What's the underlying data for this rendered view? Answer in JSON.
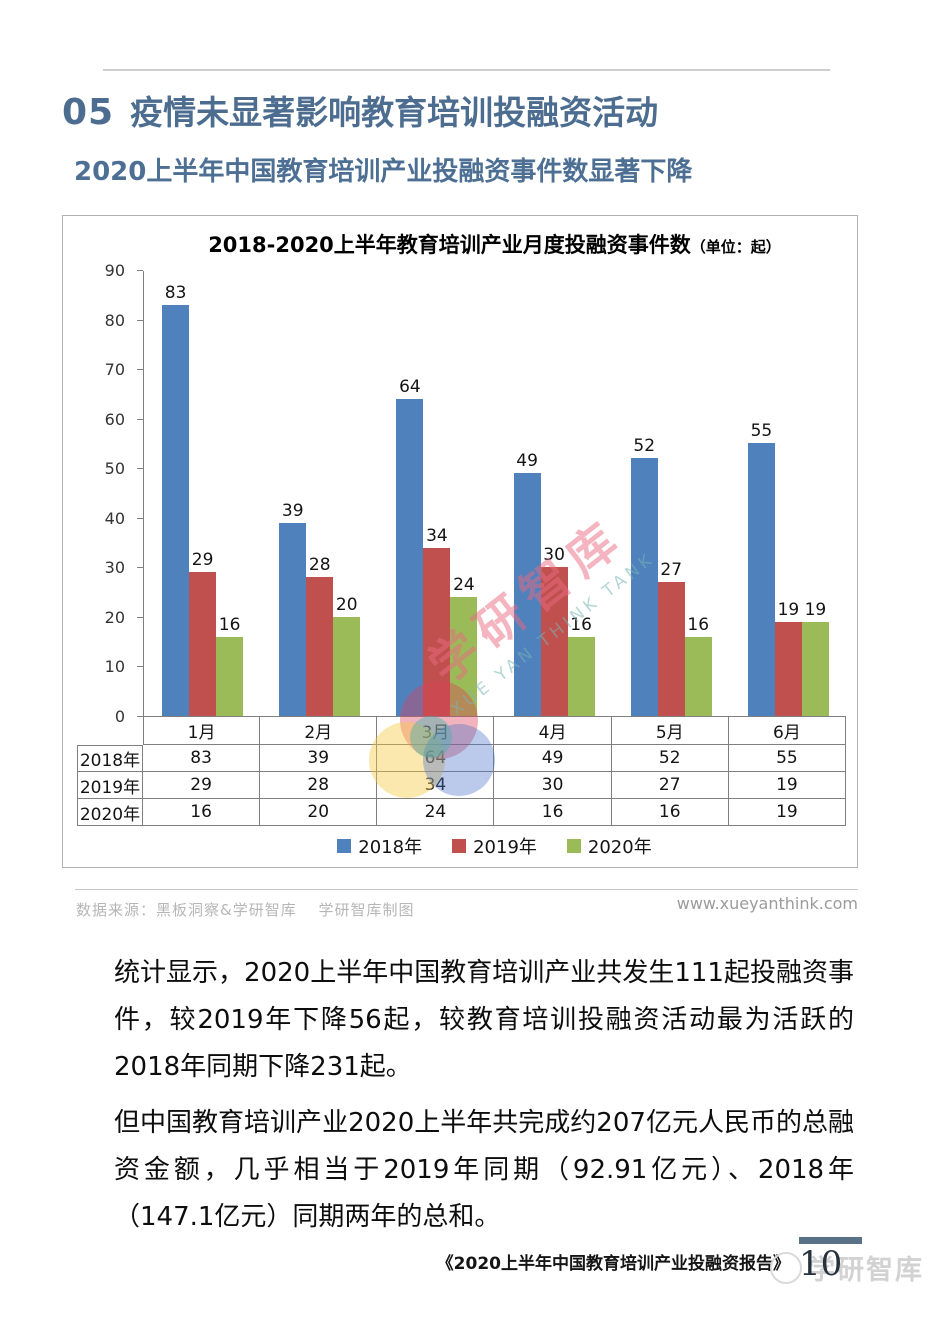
{
  "header": {
    "section_number": "05",
    "title": "疫情未显著影响教育培训投融资活动",
    "subtitle": "2020上半年中国教育培训产业投融资事件数显著下降"
  },
  "chart": {
    "title": "2018-2020上半年教育培训产业月度投融资事件数",
    "unit": "（单位：起）"
  },
  "chart_data": {
    "type": "bar",
    "title": "2018-2020上半年教育培训产业月度投融资事件数（单位：起）",
    "categories": [
      "1月",
      "2月",
      "3月",
      "4月",
      "5月",
      "6月"
    ],
    "series": [
      {
        "name": "2018年",
        "color": "#4F81BD",
        "values": [
          83,
          39,
          64,
          49,
          52,
          55
        ]
      },
      {
        "name": "2019年",
        "color": "#C0504D",
        "values": [
          29,
          28,
          34,
          30,
          27,
          19
        ]
      },
      {
        "name": "2020年",
        "color": "#9BBB59",
        "values": [
          16,
          20,
          24,
          16,
          16,
          19
        ]
      }
    ],
    "ylim": [
      0,
      90
    ],
    "yticks": [
      0,
      10,
      20,
      30,
      40,
      50,
      60,
      70,
      80,
      90
    ],
    "grid": false,
    "legend_position": "bottom",
    "data_table_shown": true
  },
  "watermark": {
    "cn": "学研智库",
    "en": "XUE YAN THINK TANK"
  },
  "source": {
    "left": "数据来源：黑板洞察&学研智库　 学研智库制图",
    "right": "www.xueyanthink.com"
  },
  "paragraphs": [
    "统计显示，2020上半年中国教育培训产业共发生111起投融资事件，较2019年下降56起，较教育培训投融资活动最为活跃的2018年同期下降231起。",
    "但中国教育培训产业2020上半年共完成约207亿元人民币的总融资金额，几乎相当于2019年同期（92.91亿元）、2018年（147.1亿元）同期两年的总和。"
  ],
  "footer": {
    "report_title": "《2020上半年中国教育培训产业投融资报告》",
    "page_number": "10",
    "watermark": "学研智库"
  }
}
